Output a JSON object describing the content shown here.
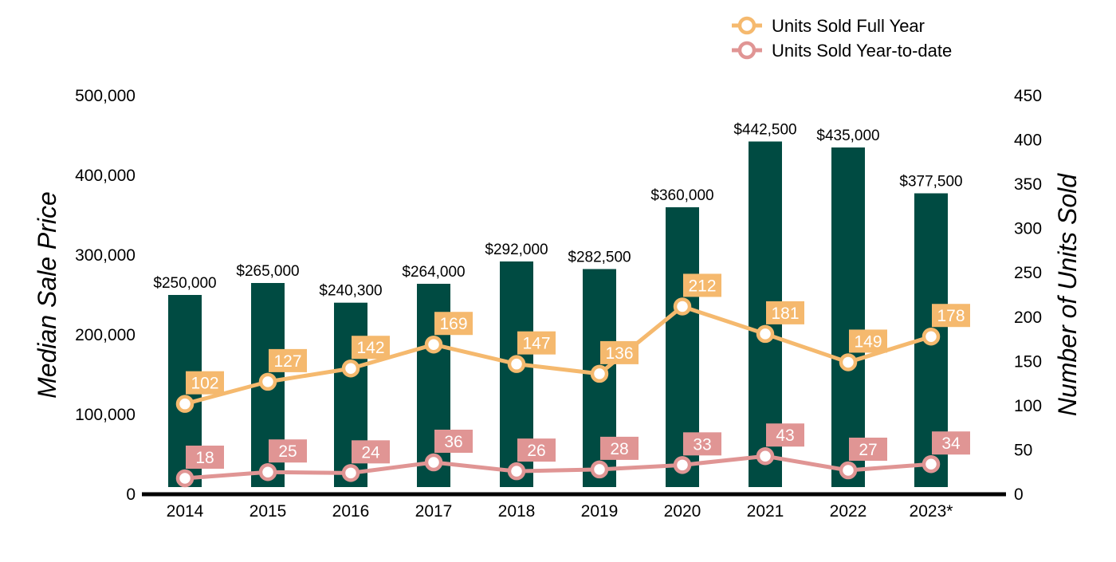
{
  "chart_data": {
    "type": "bar",
    "categories": [
      "2014",
      "2015",
      "2016",
      "2017",
      "2018",
      "2019",
      "2020",
      "2021",
      "2022",
      "2023*"
    ],
    "series": [
      {
        "name": "",
        "type": "bar",
        "axis": "left",
        "values": [
          250000,
          265000,
          240300,
          264000,
          292000,
          282500,
          360000,
          442500,
          435000,
          377500
        ],
        "labels": [
          "$250,000",
          "$265,000",
          "$240,300",
          "$264,000",
          "$292,000",
          "$282,500",
          "$360,000",
          "$442,500",
          "$435,000",
          "$377,500"
        ],
        "color": "#004b42"
      },
      {
        "name": "Units Sold Full Year",
        "type": "line",
        "axis": "right",
        "values": [
          102,
          127,
          142,
          169,
          147,
          136,
          212,
          181,
          149,
          178
        ],
        "color": "#f5b96e"
      },
      {
        "name": "Units Sold Year-to-date",
        "type": "line",
        "axis": "right",
        "values": [
          18,
          25,
          24,
          36,
          26,
          28,
          33,
          43,
          27,
          34
        ],
        "color": "#e09594"
      }
    ],
    "ylabel": "Median Sale Price",
    "ylabel_right": "Number of Units Sold",
    "ylim": [
      0,
      500000
    ],
    "ylim_right": [
      0,
      450
    ],
    "yticks": [
      "0",
      "100,000",
      "200,000",
      "300,000",
      "400,000",
      "500,000"
    ],
    "yticks_right": [
      "0",
      "50",
      "100",
      "150",
      "200",
      "250",
      "300",
      "350",
      "400",
      "450"
    ],
    "grid": false,
    "legend_position": "top-right"
  }
}
